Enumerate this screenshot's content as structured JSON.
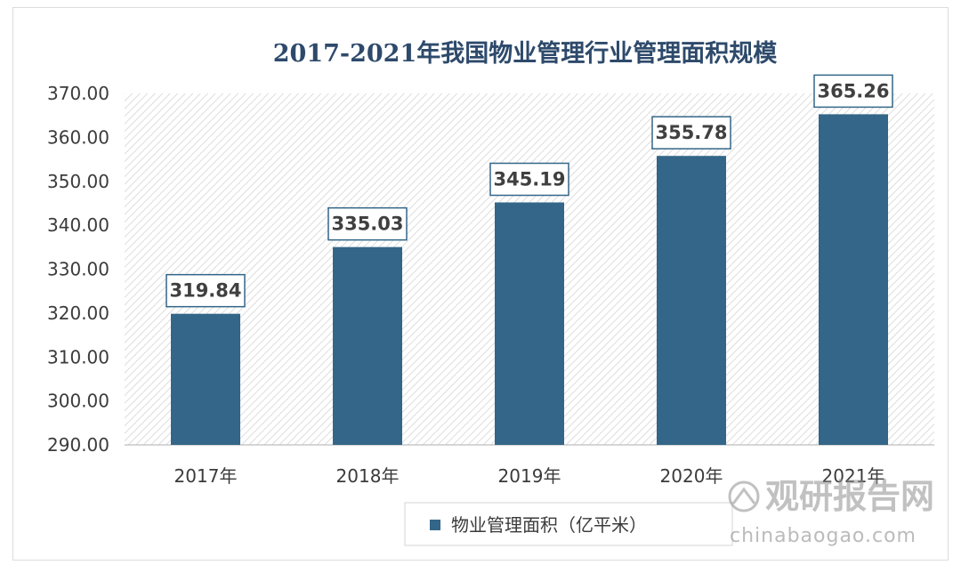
{
  "chart_data": {
    "type": "bar",
    "title": "2017-2021年我国物业管理行业管理面积规模",
    "categories": [
      "2017年",
      "2018年",
      "2019年",
      "2020年",
      "2021年"
    ],
    "series": [
      {
        "name": "物业管理面积（亿平米）",
        "values": [
          319.84,
          335.03,
          345.19,
          355.78,
          365.26
        ]
      }
    ],
    "data_labels": [
      "319.84",
      "335.03",
      "345.19",
      "355.78",
      "365.26"
    ],
    "y_ticks": [
      "290.00",
      "300.00",
      "310.00",
      "320.00",
      "330.00",
      "340.00",
      "350.00",
      "360.00",
      "370.00"
    ],
    "ylim": [
      290,
      370
    ],
    "xlabel": "",
    "ylabel": "",
    "grid": false,
    "legend_position": "bottom",
    "colors": {
      "bar": "#336688",
      "title": "#2e4a6b",
      "plot_hatch": "#d9d9d9"
    }
  },
  "watermark": {
    "name": "观研报告网",
    "url": "chinabaogao.com",
    "icon": "chinabaogao-logo-icon"
  }
}
